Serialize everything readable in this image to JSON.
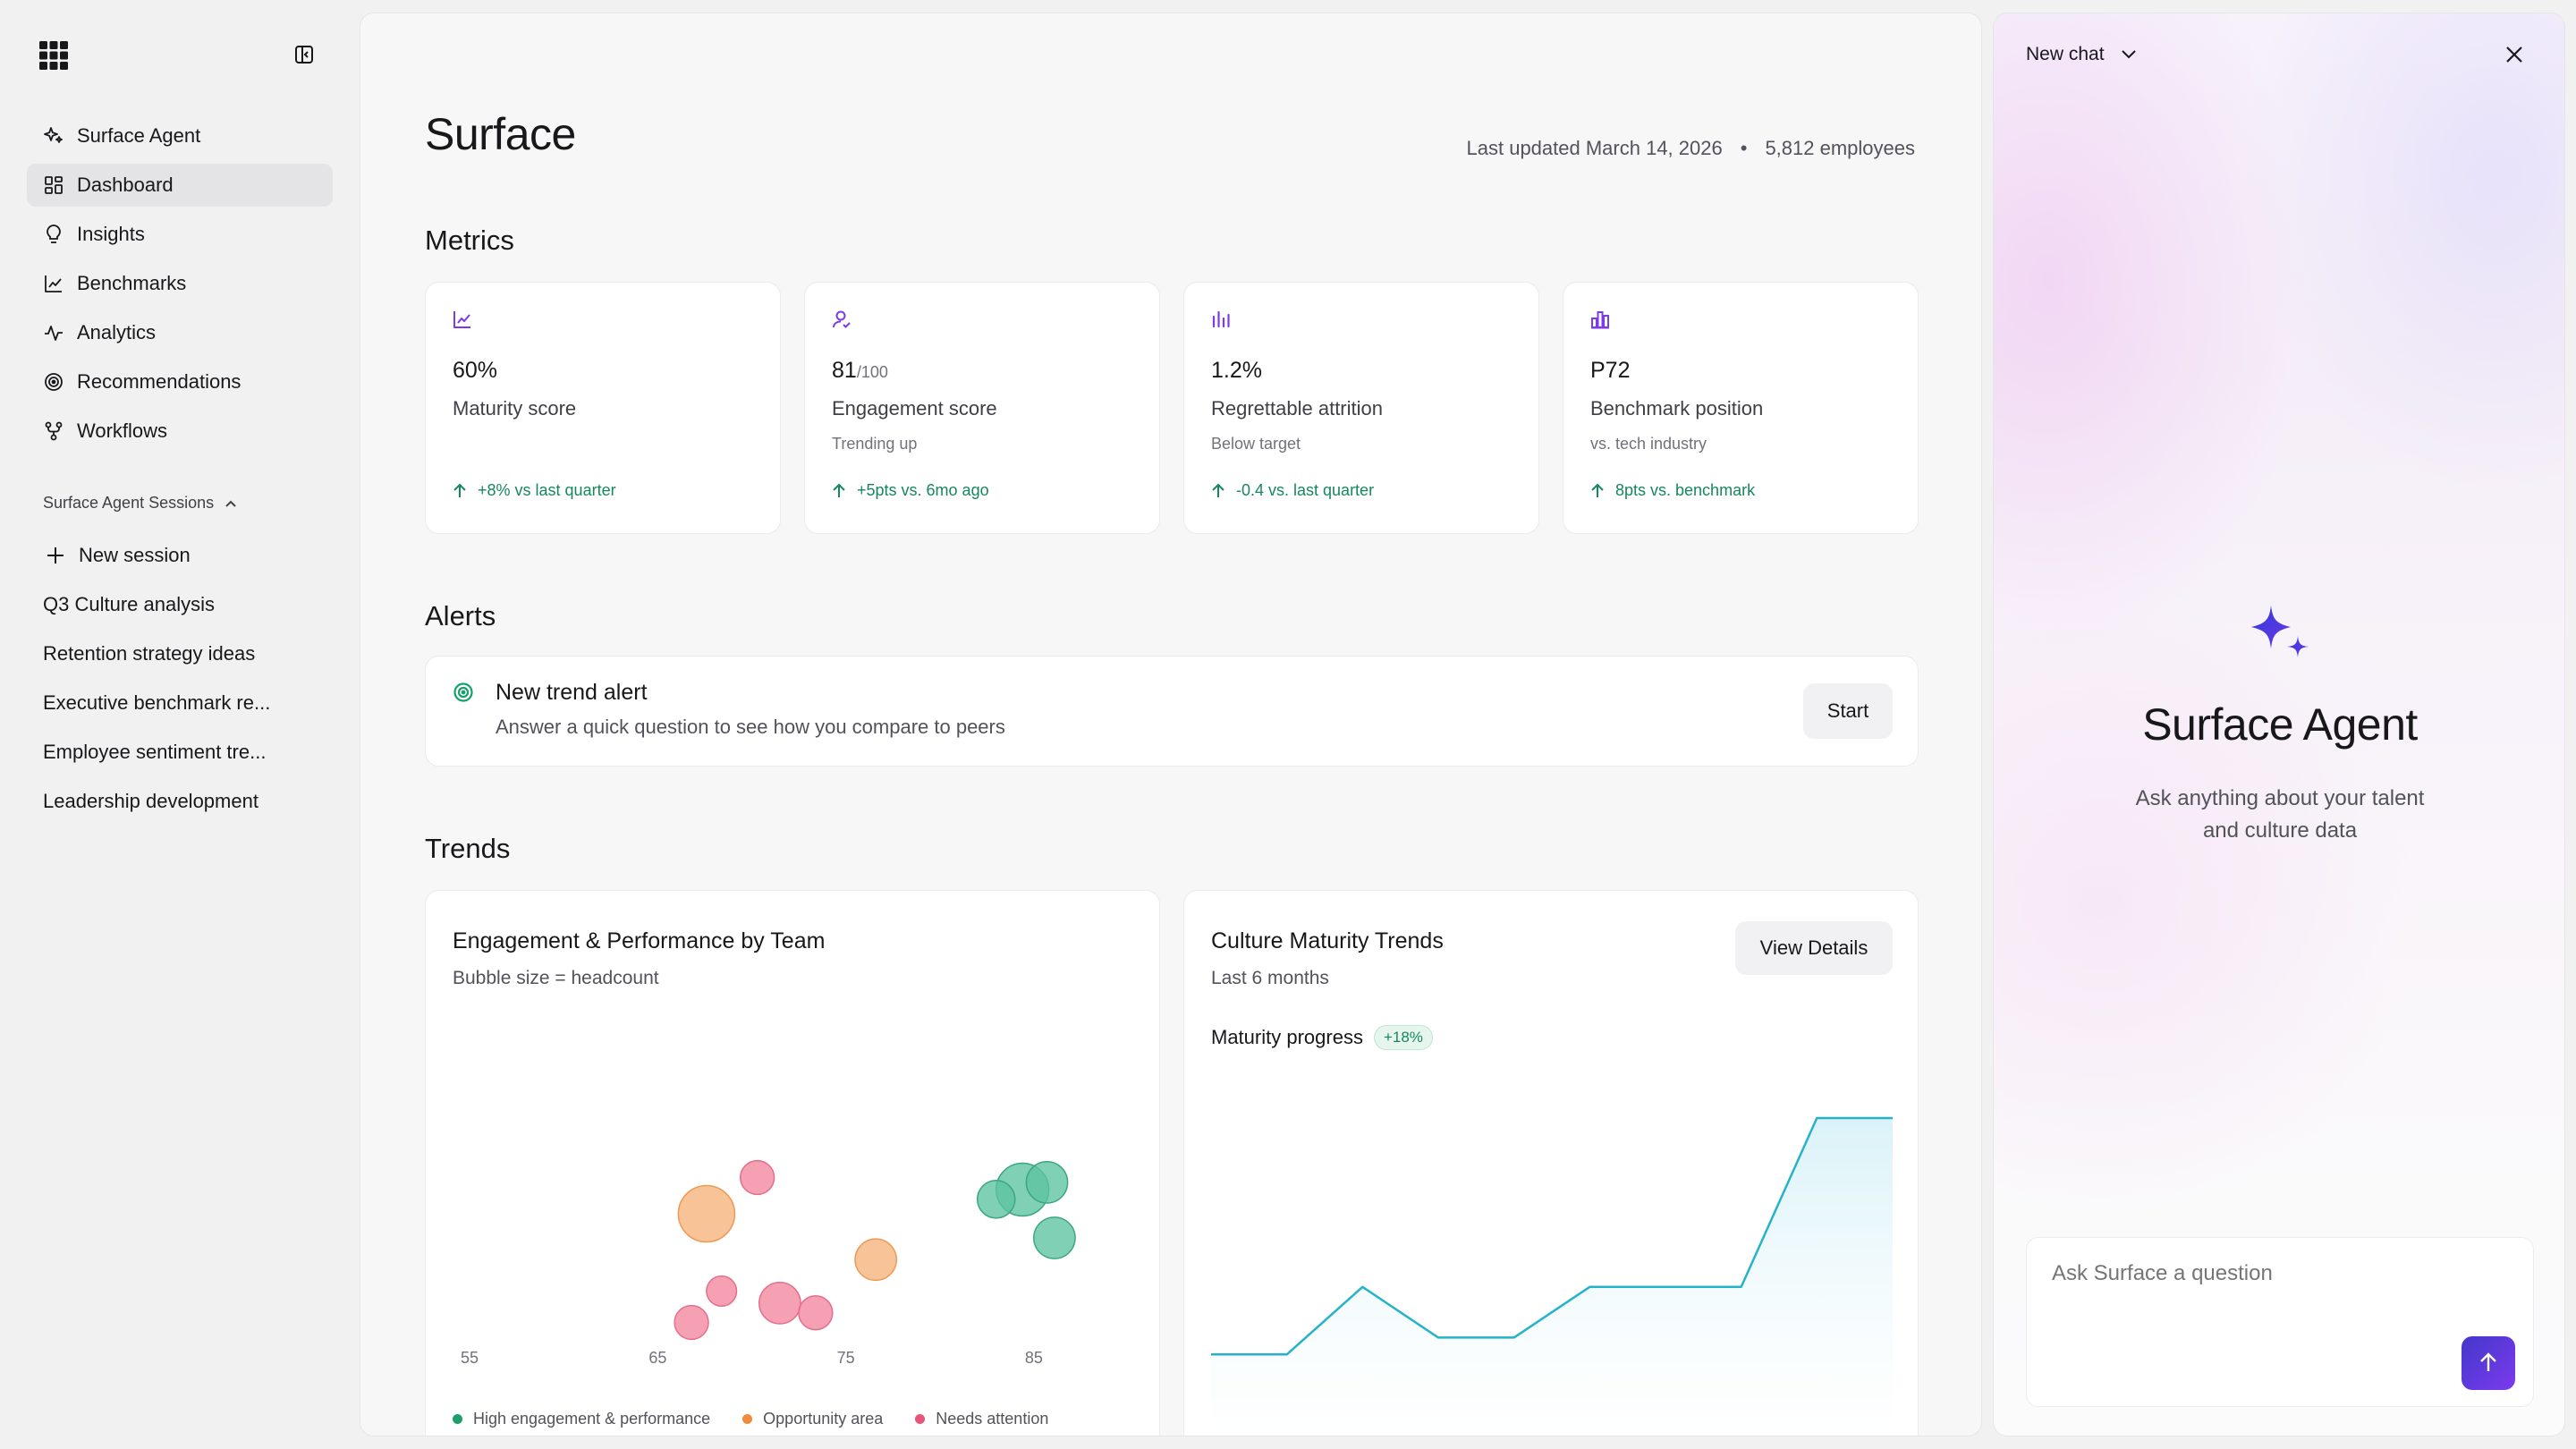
{
  "sidebar": {
    "nav": [
      {
        "label": "Surface Agent",
        "icon": "sparkle-icon"
      },
      {
        "label": "Dashboard",
        "icon": "grid-icon"
      },
      {
        "label": "Insights",
        "icon": "lightbulb-icon"
      },
      {
        "label": "Benchmarks",
        "icon": "line-chart-icon"
      },
      {
        "label": "Analytics",
        "icon": "pulse-icon"
      },
      {
        "label": "Recommendations",
        "icon": "target-icon"
      },
      {
        "label": "Workflows",
        "icon": "workflow-icon"
      }
    ],
    "sessions_heading": "Surface Agent Sessions",
    "new_session": "New session",
    "sessions": [
      "Q3 Culture analysis",
      "Retention strategy ideas",
      "Executive benchmark re...",
      "Employee sentiment tre...",
      "Leadership development"
    ]
  },
  "header": {
    "title": "Surface",
    "last_updated": "Last updated March 14, 2026",
    "separator": "•",
    "employees": "5,812 employees"
  },
  "metrics": {
    "heading": "Metrics",
    "cards": [
      {
        "icon": "trend-chart-icon",
        "value": "60%",
        "value_suffix": "",
        "label": "Maturity score",
        "sub": "",
        "trend": "+8% vs last quarter"
      },
      {
        "icon": "user-check-icon",
        "value": "81",
        "value_suffix": "/100",
        "label": "Engagement score",
        "sub": "Trending up",
        "trend": "+5pts vs. 6mo ago"
      },
      {
        "icon": "bar-chart-icon",
        "value": "1.2%",
        "value_suffix": "",
        "label": "Regrettable attrition",
        "sub": "Below target",
        "trend": "-0.4 vs. last quarter"
      },
      {
        "icon": "building-chart-icon",
        "value": "P72",
        "value_suffix": "",
        "label": "Benchmark position",
        "sub": "vs. tech industry",
        "trend": "8pts vs. benchmark"
      }
    ]
  },
  "alerts": {
    "heading": "Alerts",
    "title": "New trend alert",
    "description": "Answer a quick question to see how you compare to peers",
    "button": "Start"
  },
  "trends": {
    "heading": "Trends",
    "bubble": {
      "title": "Engagement & Performance by Team",
      "subtitle": "Bubble size = headcount",
      "legend": [
        "High engagement & performance",
        "Opportunity area",
        "Needs attention"
      ]
    },
    "line": {
      "title": "Culture Maturity Trends",
      "subtitle": "Last 6 months",
      "button": "View Details",
      "progress_label": "Maturity progress",
      "progress_badge": "+18%"
    }
  },
  "chart_data": [
    {
      "type": "scatter",
      "title": "Engagement & Performance by Team",
      "xlim": [
        54,
        89
      ],
      "ylim": [
        0,
        10
      ],
      "x_ticks": [
        55,
        65,
        75,
        85
      ],
      "colors": {
        "green": "#5cc3a0",
        "orange": "#f6b27a",
        "pink": "#f2869d"
      },
      "series": [
        {
          "name": "High engagement & performance",
          "color": "green",
          "points": [
            {
              "x": 84.3,
              "y": 8.0,
              "r": 1.4
            },
            {
              "x": 85.6,
              "y": 8.3,
              "r": 1.1
            },
            {
              "x": 82.9,
              "y": 7.6,
              "r": 1.0
            },
            {
              "x": 86.0,
              "y": 6.0,
              "r": 1.1
            }
          ]
        },
        {
          "name": "Opportunity area",
          "color": "orange",
          "points": [
            {
              "x": 67.5,
              "y": 7.0,
              "r": 1.5
            },
            {
              "x": 76.5,
              "y": 5.1,
              "r": 1.1
            }
          ]
        },
        {
          "name": "Needs attention",
          "color": "pink",
          "points": [
            {
              "x": 70.2,
              "y": 8.5,
              "r": 0.9
            },
            {
              "x": 71.4,
              "y": 3.3,
              "r": 1.1
            },
            {
              "x": 66.7,
              "y": 2.5,
              "r": 0.9
            },
            {
              "x": 68.3,
              "y": 3.8,
              "r": 0.8
            },
            {
              "x": 73.3,
              "y": 2.9,
              "r": 0.9
            }
          ]
        }
      ]
    },
    {
      "type": "line",
      "title": "Culture Maturity Trends",
      "ylim": [
        0,
        10
      ],
      "values": [
        1,
        1,
        3,
        1.5,
        1.5,
        3,
        3,
        3,
        8,
        8
      ]
    }
  ],
  "chat": {
    "title": "New chat",
    "agent_title": "Surface Agent",
    "agent_description": "Ask anything about your talent and culture data",
    "input_placeholder": "Ask Surface a question"
  }
}
